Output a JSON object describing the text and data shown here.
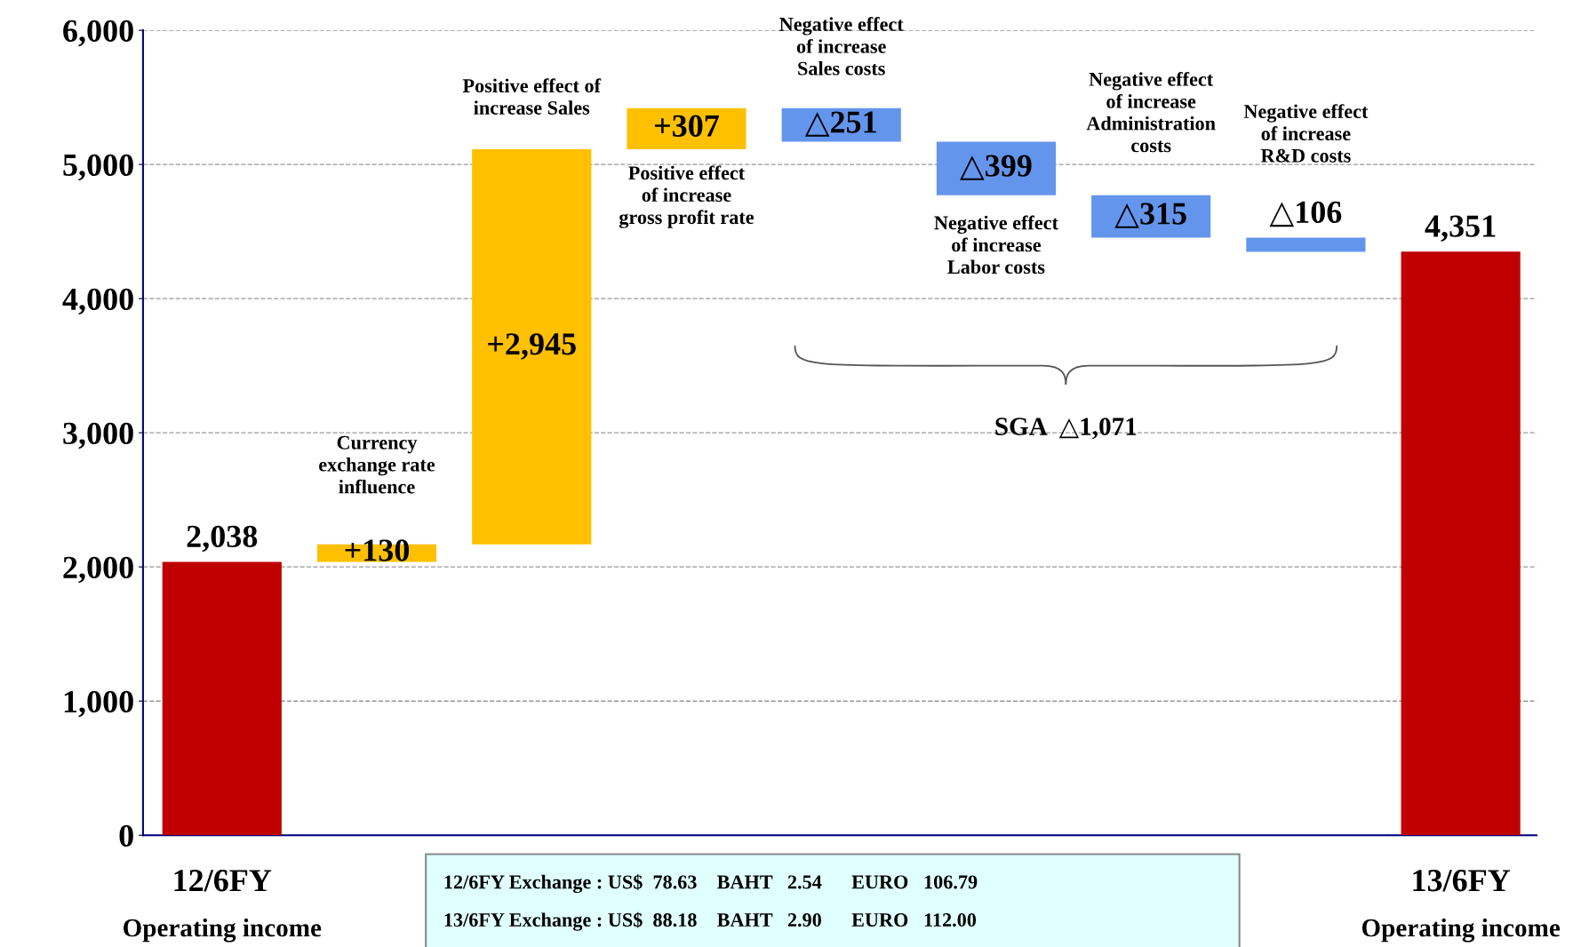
{
  "chart_data": {
    "type": "bar",
    "categories": [
      "12/6FY\nOperating income",
      null,
      null,
      null,
      null,
      null,
      null,
      null,
      "13/6FY\nOperating income"
    ],
    "values": [
      2038,
      130,
      2945,
      307,
      -251,
      -399,
      -315,
      -106,
      4351
    ],
    "base": [
      0,
      2038,
      2168,
      5113,
      5420,
      5169,
      4770,
      4455,
      0
    ],
    "colors": [
      "#c00000",
      "#ffc000",
      "#ffc000",
      "#ffc000",
      "#6495ed",
      "#6495ed",
      "#6495ed",
      "#6495ed",
      "#c00000"
    ],
    "value_labels": [
      "2,038",
      "+130",
      "+2,945",
      "+307",
      "△251",
      "△399",
      "△315",
      "△106",
      "4,351"
    ],
    "ylim": [
      0,
      6000
    ],
    "yticks": [
      {
        "value": 0,
        "label": "0"
      },
      {
        "value": 1000,
        "label": "1,000"
      },
      {
        "value": 2000,
        "label": "2,000"
      },
      {
        "value": 3000,
        "label": "3,000"
      },
      {
        "value": 4000,
        "label": "4,000"
      },
      {
        "value": 5000,
        "label": "5,000"
      },
      {
        "value": 6000,
        "label": "6,000"
      }
    ],
    "grid": "y",
    "annotations": [
      "Currency\nexchange rate\ninfluence",
      "Positive effect of\nincrease Sales",
      "Positive effect\nof increase\ngross profit rate",
      "Negative effect\nof increase\nSales costs",
      "Negative effect\nof increase\nLabor costs",
      "Negative effect\nof increase\nAdministration\ncosts",
      "Negative effect\nof increase\nR&D costs",
      "SGA  △1,071",
      "12/6FY Exchange : US$  78.63    BAHT   2.54      EURO   106.79",
      "13/6FY Exchange : US$  88.18    BAHT   2.90      EURO   112.00"
    ]
  }
}
